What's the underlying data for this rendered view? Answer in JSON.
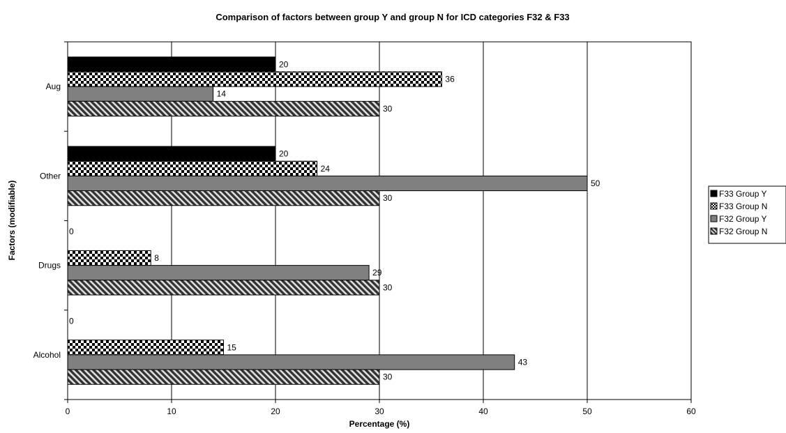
{
  "chart_data": {
    "type": "bar",
    "orientation": "horizontal",
    "title": "Comparison of factors between group Y and group N for ICD categories F32 & F33",
    "xlabel": "Percentage (%)",
    "ylabel": "Factors (modifiable)",
    "xlim": [
      0,
      60
    ],
    "xticks": [
      "0",
      "10",
      "20",
      "30",
      "40",
      "50",
      "60"
    ],
    "grid": "vertical",
    "legend_position": "right",
    "categories": [
      "Aug",
      "Other",
      "Drugs",
      "Alcohol"
    ],
    "series": [
      {
        "name": "F33 Group Y",
        "values": [
          20,
          20,
          0,
          0
        ],
        "fill": "solid",
        "color": "#000000"
      },
      {
        "name": "F33 Group N",
        "values": [
          36,
          24,
          8,
          15
        ],
        "fill": "checker",
        "color": "#000000"
      },
      {
        "name": "F32 Group Y",
        "values": [
          14,
          50,
          29,
          43
        ],
        "fill": "solid",
        "color": "#808080"
      },
      {
        "name": "F32 Group N",
        "values": [
          30,
          30,
          30,
          30
        ],
        "fill": "diagonal",
        "color": "#333333"
      }
    ]
  }
}
